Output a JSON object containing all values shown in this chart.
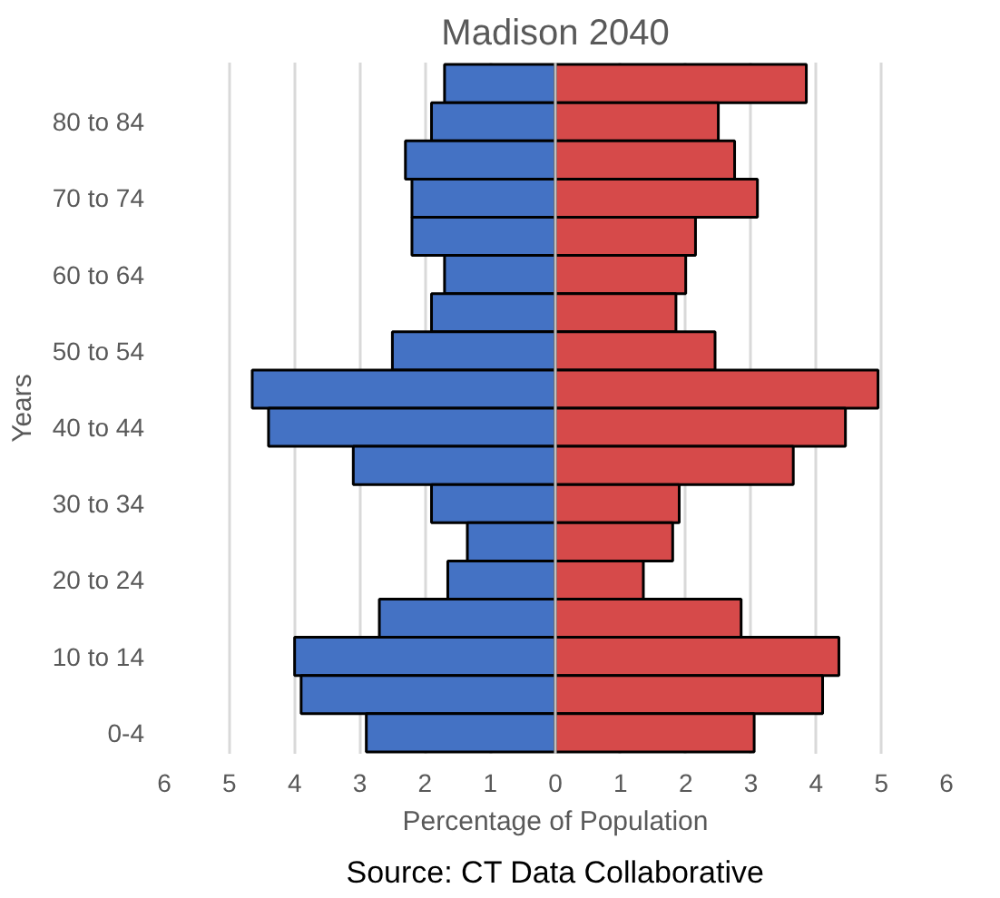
{
  "chart_data": {
    "type": "bar",
    "orientation": "horizontal",
    "title": "Madison 2040",
    "xlabel": "Percentage of Population",
    "ylabel": "Years",
    "categories": [
      null,
      "80 to 84",
      null,
      "70 to 74",
      null,
      "60 to 64",
      null,
      "50 to 54",
      null,
      "40 to 44",
      null,
      "30 to 34",
      null,
      "20 to 24",
      null,
      "10 to 14",
      null,
      "0-4"
    ],
    "series": [
      {
        "color": "#4472c4",
        "values": [
          -1.7,
          -1.9,
          -2.3,
          -2.2,
          -2.2,
          -1.7,
          -1.9,
          -2.5,
          -4.65,
          -4.4,
          -3.1,
          -1.9,
          -1.35,
          -1.65,
          -2.7,
          -4.0,
          -3.9,
          -2.9
        ]
      },
      {
        "color": "#d64a4a",
        "values": [
          3.85,
          2.5,
          2.75,
          3.1,
          2.15,
          2.0,
          1.85,
          2.45,
          4.95,
          4.45,
          3.65,
          1.9,
          1.8,
          1.35,
          2.85,
          4.35,
          4.1,
          3.05
        ]
      }
    ],
    "xlim": [
      -6,
      6
    ],
    "stacked": true,
    "xticks": [
      {
        "value": -6,
        "label": "6"
      },
      {
        "value": -5,
        "label": "5"
      },
      {
        "value": -4,
        "label": "4"
      },
      {
        "value": -3,
        "label": "3"
      },
      {
        "value": -2,
        "label": "2"
      },
      {
        "value": -1,
        "label": "1"
      },
      0,
      1,
      2,
      3,
      4,
      5,
      6
    ],
    "grid": "x",
    "annotations": [
      "Source: CT Data Collaborative"
    ]
  }
}
